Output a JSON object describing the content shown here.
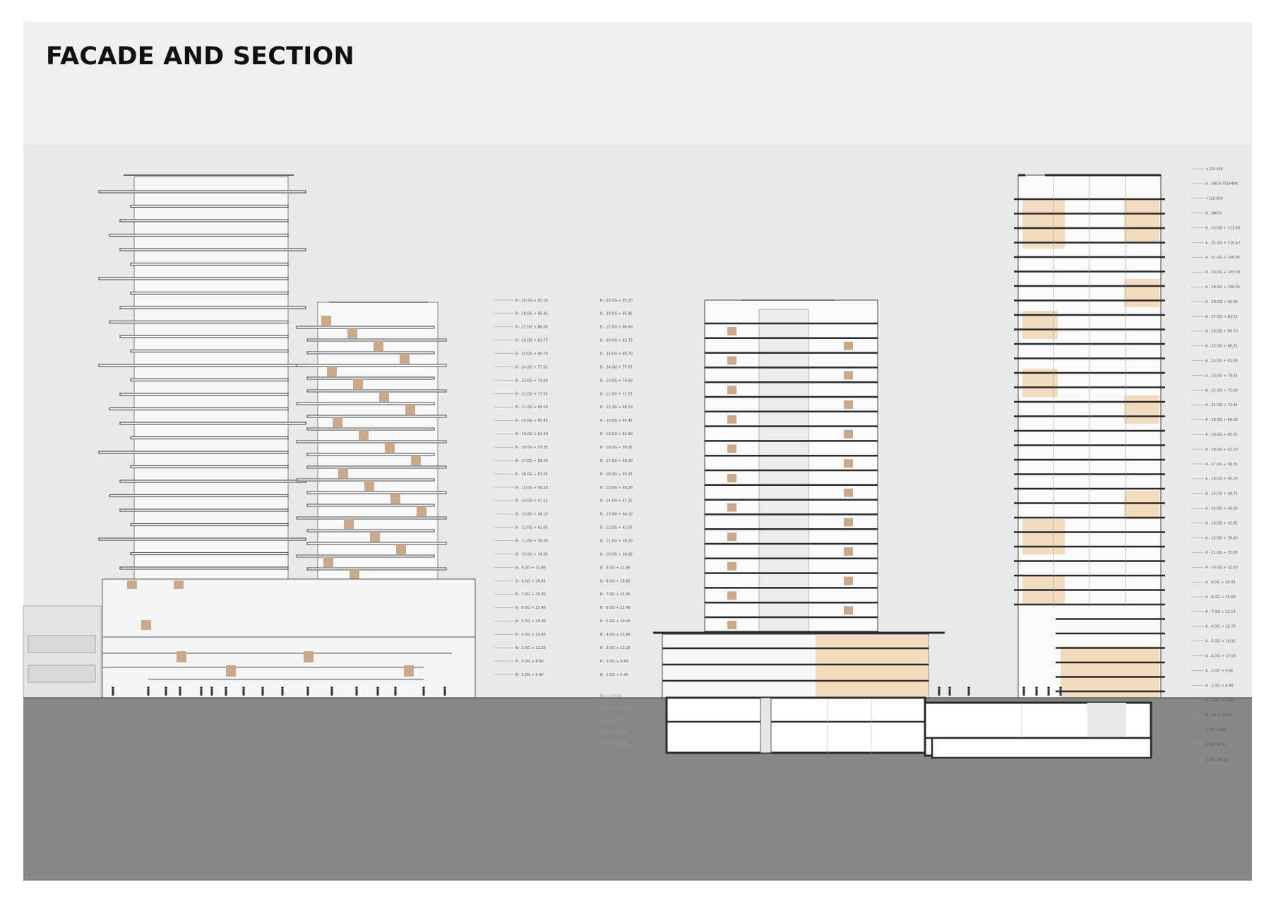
{
  "title": "FACADE AND SECTION",
  "colors": {
    "sheet": "#efefef",
    "sky_band": "#e9e9e9",
    "ground": "#878787",
    "slab": "#2a2a2a",
    "warm_fill": "#f1dcc0",
    "wood_panel": "#c9a98a",
    "facade_line": "#555555"
  },
  "facade_levels_B": [
    "B - 28.OG + 85.20",
    "B - 28.OG + 85.95",
    "B - 27.OG + 86.80",
    "B - 26.OG + 83.75",
    "B - 25.OG + 80.70",
    "B - 24.OG + 77.65",
    "B - 23.OG + 74.60",
    "B - 22.OG + 71.55",
    "B - 21.OG + 68.50",
    "B - 20.OG + 65.45",
    "B - 19.OG + 62.40",
    "B - 18.OG + 59.35",
    "B - 17.OG + 56.30",
    "B - 16.OG + 53.25",
    "B - 15.OG + 50.20",
    "B - 14.OG + 47.15",
    "B - 13.OG + 44.10",
    "B - 12.OG + 41.05",
    "B - 11.OG + 38.00",
    "B - 10.OG + 34.95",
    "B - 9.OG + 31.90",
    "B - 8.OG + 28.85",
    "B - 7.OG + 25.80",
    "B - 6.OG + 22.40",
    "B - 5.OG + 19.00",
    "B - 4.OG + 15.60",
    "B - 3.OG + 12.20",
    "B - 2.OG + 8.80",
    "B - 1.OG + 5.40"
  ],
  "section_levels_B_extra": [
    "EG + ±0.00",
    "B - 0.5 OG + 2.00",
    "B - 1.UG - 4.40",
    "B - 2.UG - 8.80",
    "B - UG 3 - 11.00"
  ],
  "section_levels_A": [
    "+125.350",
    "A - DACH TECHNIK",
    "+120.000",
    "A - DACH",
    "A - 33.OG + 113.80",
    "A - 32.OG + 110.40",
    "A - 31.OG + 106.95",
    "A - 30.OG + 103.50",
    "A - 29.OG + 100.05",
    "A - 28.OG + 96.60",
    "A - 27.OG + 93.15",
    "A - 26.OG + 89.70",
    "A - 25.OG + 86.25",
    "A - 24.OG + 82.80",
    "A - 23.OG + 79.35",
    "A - 22.OG + 75.90",
    "A - 21.OG + 72.45",
    "A - 20.OG + 69.00",
    "A - 19.OG + 65.55",
    "A - 18.OG + 62.10",
    "A - 17.OG + 58.65",
    "A - 16.OG + 55.20",
    "A - 15.OG + 48.75",
    "A - 14.OG + 46.30",
    "A - 13.OG + 42.85",
    "A - 12.OG + 39.40",
    "A - 11.OG + 35.95",
    "A - 10.OG + 32.50",
    "A - 9.OG + 29.05",
    "A - 8.OG + 25.60",
    "A - 7.OG + 22.15",
    "A - 6.OG + 18.70",
    "A - 5.OG + 16.05",
    "A - 4.OG + 13.00",
    "A - 3.OG + 9.95",
    "A - 2.OG + 6.90",
    "A - 1.OG + 3.85",
    "A - EG + ±0.00",
    "1.UG - 4.00",
    "2.UG - 8.00",
    "3.UG - 14.20"
  ]
}
